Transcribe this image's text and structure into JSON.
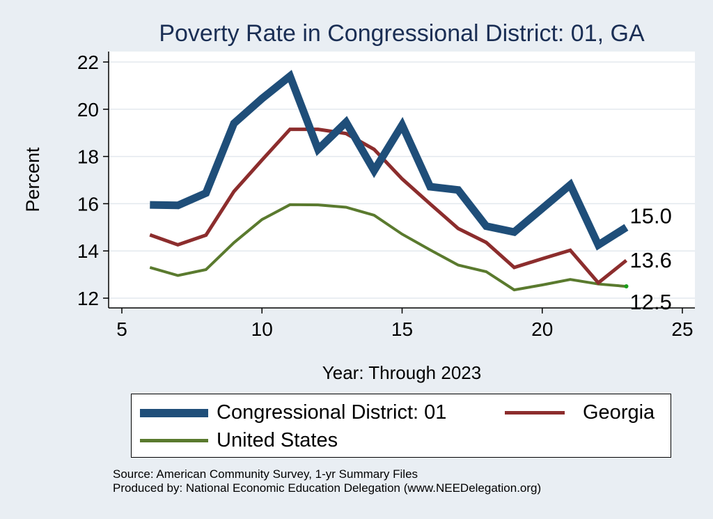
{
  "chart_data": {
    "type": "line",
    "title": "Poverty Rate in Congressional District:  01, GA",
    "xlabel": "Year: Through 2023",
    "ylabel": "Percent",
    "xlim": [
      5,
      25
    ],
    "ylim": [
      11.8,
      22.5
    ],
    "xticks": [
      5,
      10,
      15,
      20,
      25
    ],
    "yticks": [
      12,
      14,
      16,
      18,
      20,
      22
    ],
    "grid": true,
    "legend_position": "bottom",
    "series": [
      {
        "name": "Congressional District:  01",
        "color": "#1f4e79",
        "x": [
          6,
          7,
          8,
          9,
          10,
          11,
          12,
          13,
          14,
          15,
          16,
          17,
          18,
          19,
          20,
          21,
          22,
          23
        ],
        "values": [
          15.95,
          15.93,
          16.45,
          19.4,
          20.45,
          21.4,
          18.3,
          19.45,
          17.4,
          19.33,
          16.72,
          16.58,
          15.05,
          14.8,
          15.8,
          16.8,
          14.25,
          15.0
        ],
        "end_label": "15.0"
      },
      {
        "name": "Georgia",
        "color": "#8c2d2d",
        "x": [
          6,
          7,
          8,
          9,
          10,
          11,
          12,
          13,
          14,
          15,
          16,
          17,
          18,
          19,
          20,
          21,
          22,
          23
        ],
        "values": [
          14.68,
          14.26,
          14.67,
          16.52,
          17.85,
          19.15,
          19.15,
          18.97,
          18.3,
          17.05,
          15.99,
          14.95,
          14.36,
          13.3,
          13.67,
          14.03,
          12.65,
          13.6
        ],
        "end_label": "13.6"
      },
      {
        "name": "United States",
        "color": "#5a7a2e",
        "x": [
          6,
          7,
          8,
          9,
          10,
          11,
          12,
          13,
          14,
          15,
          16,
          17,
          18,
          19,
          20,
          21,
          22,
          23
        ],
        "values": [
          13.3,
          12.96,
          13.21,
          14.35,
          15.33,
          15.96,
          15.95,
          15.85,
          15.51,
          14.71,
          14.04,
          13.4,
          13.12,
          12.35,
          12.56,
          12.79,
          12.6,
          12.5
        ],
        "end_label": "12.5"
      }
    ]
  },
  "legend": {
    "items": [
      "Congressional District:  01",
      "Georgia",
      "United States"
    ]
  },
  "source": {
    "line1": "Source: American Community Survey, 1-yr Summary Files",
    "line2": "Produced by: National Economic Education Delegation (www.NEEDelegation.org)"
  }
}
